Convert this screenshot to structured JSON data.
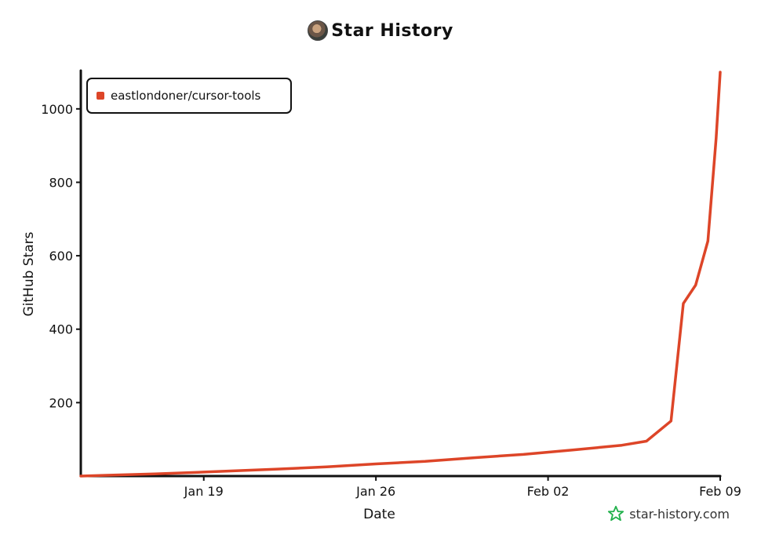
{
  "header": {
    "title": "Star History"
  },
  "watermark": {
    "text": "star-history.com",
    "icon": "star-outline-icon",
    "icon_color": "#22b14c"
  },
  "colors": {
    "series": "#dd4528",
    "axis": "#111111"
  },
  "chart_data": {
    "type": "line",
    "title": "Star History",
    "xlabel": "Date",
    "ylabel": "GitHub Stars",
    "x_ticks": [
      "Jan 19",
      "Jan 26",
      "Feb 02",
      "Feb 09"
    ],
    "y_ticks": [
      200,
      400,
      600,
      800,
      1000
    ],
    "xlim": [
      "2025-01-14",
      "2025-02-09"
    ],
    "ylim": [
      0,
      1100
    ],
    "grid": false,
    "legend_position": "top-left",
    "series": [
      {
        "name": "eastlondoner/cursor-tools",
        "color": "#dd4528",
        "points": [
          {
            "x": "2025-01-14",
            "y": 0
          },
          {
            "x": "2025-01-17",
            "y": 6
          },
          {
            "x": "2025-01-19",
            "y": 11
          },
          {
            "x": "2025-01-22",
            "y": 19
          },
          {
            "x": "2025-01-24",
            "y": 25
          },
          {
            "x": "2025-01-26",
            "y": 33
          },
          {
            "x": "2025-01-28",
            "y": 40
          },
          {
            "x": "2025-01-30",
            "y": 50
          },
          {
            "x": "2025-02-01",
            "y": 59
          },
          {
            "x": "2025-02-03",
            "y": 71
          },
          {
            "x": "2025-02-05",
            "y": 84
          },
          {
            "x": "2025-02-06",
            "y": 95
          },
          {
            "x": "2025-02-07",
            "y": 150
          },
          {
            "x": "2025-02-07T12:00",
            "y": 470
          },
          {
            "x": "2025-02-08",
            "y": 520
          },
          {
            "x": "2025-02-08T12:00",
            "y": 640
          },
          {
            "x": "2025-02-08T20:00",
            "y": 920
          },
          {
            "x": "2025-02-09",
            "y": 1100
          }
        ]
      }
    ]
  }
}
